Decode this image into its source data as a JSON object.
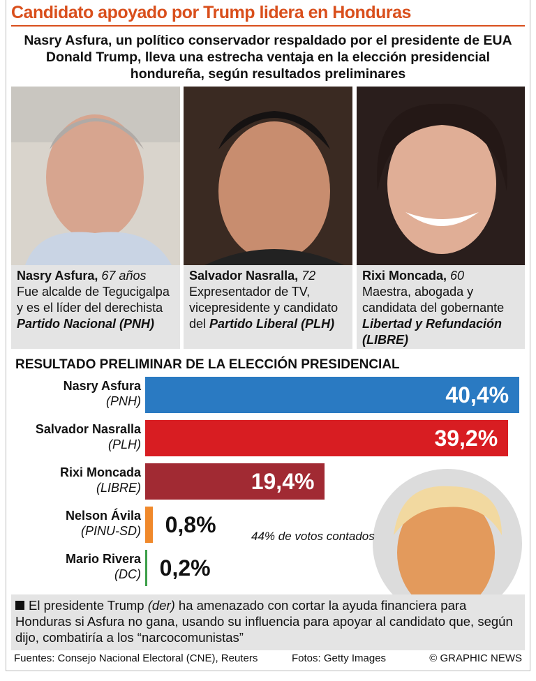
{
  "header": {
    "title": "Candidato apoyado por Trump lidera en Honduras",
    "subtitle": "Nasry Asfura, un político conservador respaldado por el presidente de EUA Donald Trump, lleva una estrecha ventaja en la elección presidencial hondureña, según resultados preliminares"
  },
  "candidates": [
    {
      "name": "Nasry Asfura,",
      "age": "67 años",
      "desc": "Fue alcalde de Tegucigalpa y es el líder del derechista",
      "party": "Partido Nacional (PNH)"
    },
    {
      "name": "Salvador Nasralla,",
      "age": "72",
      "desc": "Expresentador de TV, vicepresidente y candidato del",
      "party": "Partido Liberal (PLH)"
    },
    {
      "name": "Rixi Moncada,",
      "age": "60",
      "desc": "Maestra, abogada y candidata del gobernante",
      "party": "Libertad y Refundación (LIBRE)"
    }
  ],
  "chart_data": {
    "type": "bar",
    "orientation": "horizontal",
    "title": "RESULTADO PRELIMINAR DE LA ELECCIÓN PRESIDENCIAL",
    "categories": [
      "Nasry Asfura",
      "Salvador Nasralla",
      "Rixi Moncada",
      "Nelson Ávila",
      "Mario Rivera"
    ],
    "parties": [
      "(PNH)",
      "(PLH)",
      "(LIBRE)",
      "(PINU-SD)",
      "(DC)"
    ],
    "values": [
      40.4,
      39.2,
      19.4,
      0.8,
      0.2
    ],
    "value_labels": [
      "40,4%",
      "39,2%",
      "19,4%",
      "0,8%",
      "0,2%"
    ],
    "colors": [
      "#2a7ac2",
      "#d81d22",
      "#a12a33",
      "#f0892b",
      "#3d9f49"
    ],
    "annotation": "44% de votos contados"
  },
  "note": {
    "lead": "El presidente Trump",
    "aside": "(der)",
    "text": "ha amenazado con cortar la ayuda financiera para Honduras si Asfura no gana, usando su influencia para apoyar al candidato que, según dijo, combatiría a los “narcocomunistas”"
  },
  "footer": {
    "sources": "Fuentes: Consejo Nacional Electoral (CNE), Reuters",
    "photos": "Fotos: Getty Images",
    "credit": "© GRAPHIC NEWS"
  }
}
